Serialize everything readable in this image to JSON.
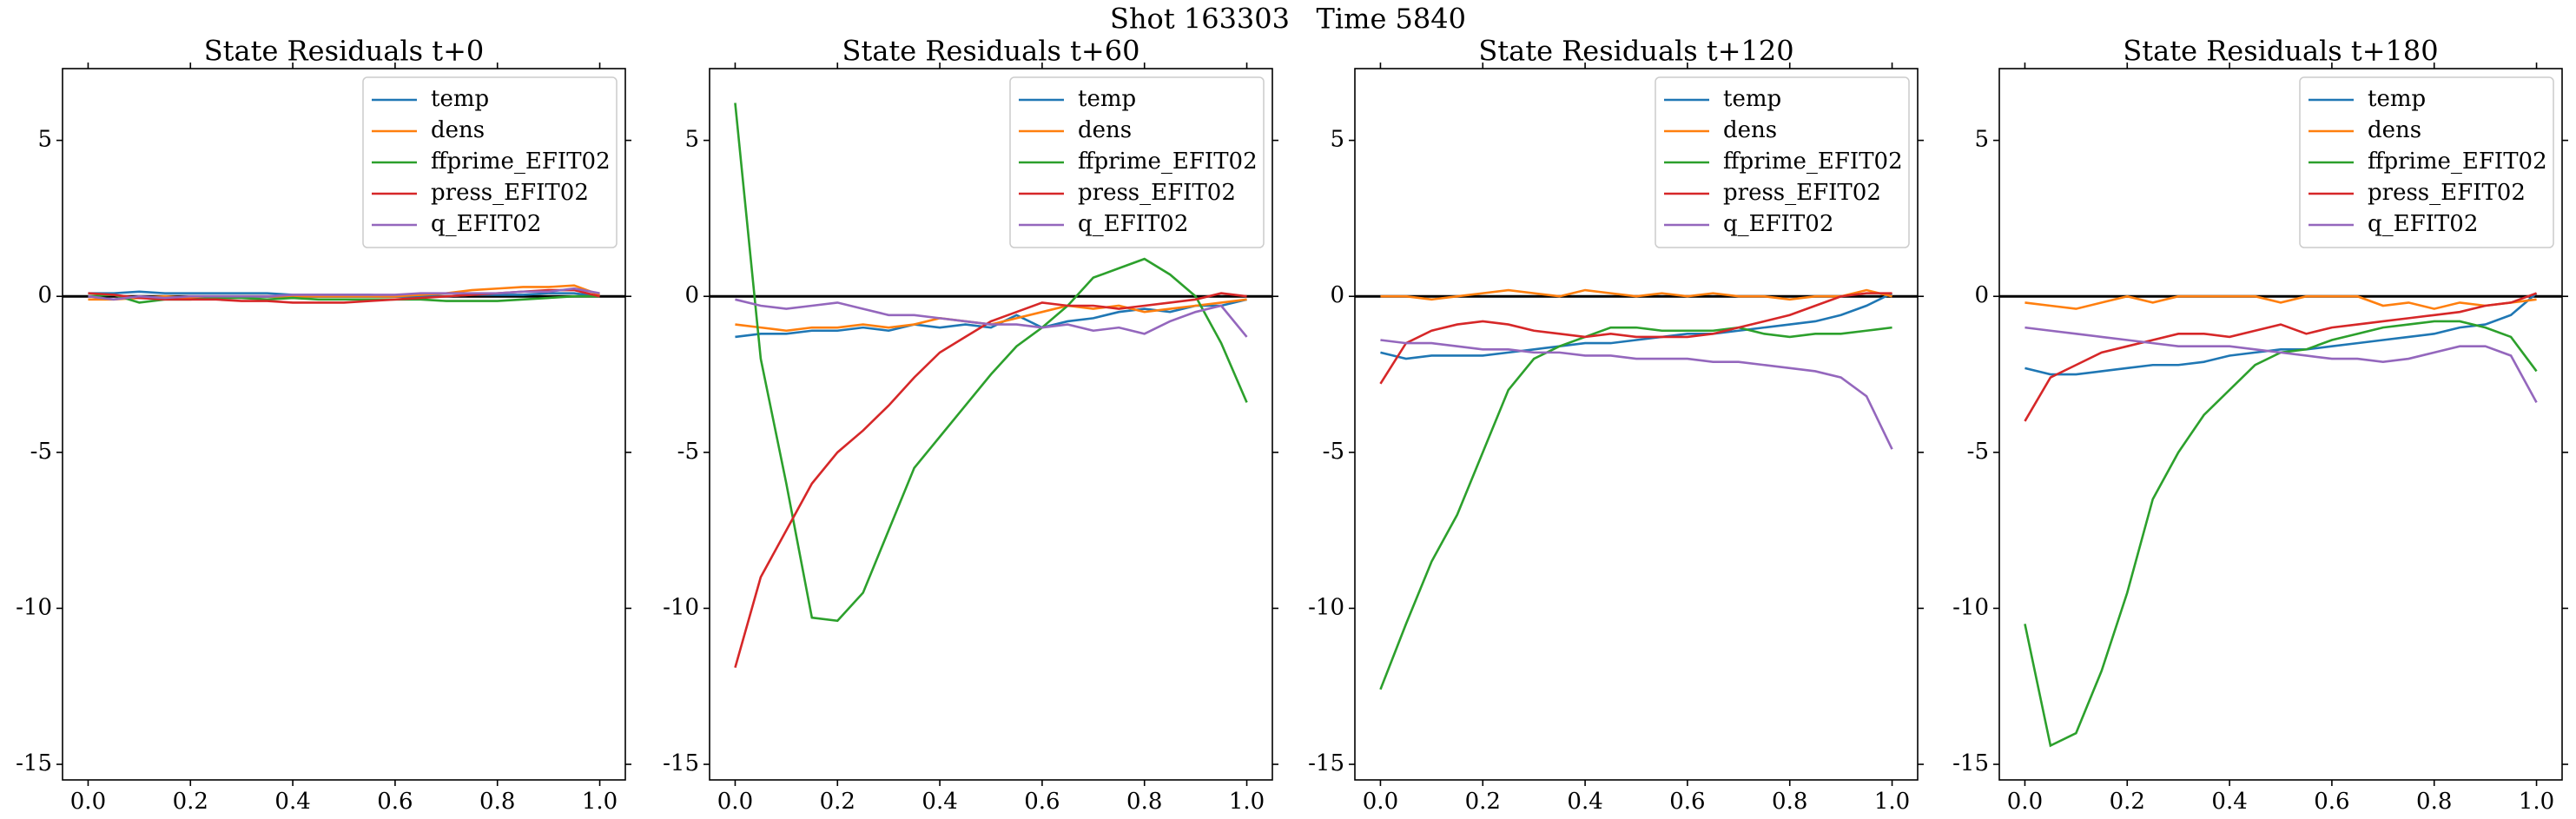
{
  "title": "Shot 163303   Time 5840",
  "chart_data": [
    {
      "type": "line",
      "title": "State Residuals t+0",
      "legend": "upper right",
      "zero_line": true,
      "x": [
        0,
        0.05,
        0.1,
        0.15,
        0.2,
        0.25,
        0.3,
        0.35,
        0.4,
        0.45,
        0.5,
        0.55,
        0.6,
        0.65,
        0.7,
        0.75,
        0.8,
        0.85,
        0.9,
        0.95,
        1
      ],
      "xlim": [
        -0.05,
        1.05
      ],
      "ylim": [
        -15.5,
        7.3
      ],
      "xticks": [
        {
          "value": 0,
          "label": "0.0"
        },
        {
          "value": 0.2,
          "label": "0.2"
        },
        {
          "value": 0.4,
          "label": "0.4"
        },
        {
          "value": 0.6,
          "label": "0.6"
        },
        {
          "value": 0.8,
          "label": "0.8"
        },
        {
          "value": 1,
          "label": "1.0"
        }
      ],
      "yticks": [
        -15,
        -10,
        -5,
        0,
        5
      ],
      "series": [
        {
          "name": "temp",
          "color": "#1f77b4",
          "values": [
            0.1,
            0.1,
            0.15,
            0.1,
            0.1,
            0.1,
            0.1,
            0.1,
            0.05,
            0.05,
            0.05,
            0.05,
            0,
            0,
            0,
            0.05,
            0.05,
            0.05,
            0.1,
            0.1,
            0
          ]
        },
        {
          "name": "dens",
          "color": "#ff7f0e",
          "values": [
            -0.1,
            -0.1,
            -0.05,
            0,
            -0.05,
            -0.05,
            0,
            0,
            0,
            0,
            0,
            0,
            0,
            0.05,
            0.1,
            0.2,
            0.25,
            0.3,
            0.3,
            0.35,
            0.05
          ]
        },
        {
          "name": "ffprime_EFIT02",
          "color": "#2ca02c",
          "values": [
            0,
            0.05,
            -0.2,
            -0.1,
            -0.1,
            -0.05,
            -0.05,
            -0.1,
            -0.05,
            -0.1,
            -0.1,
            -0.1,
            -0.1,
            -0.1,
            -0.15,
            -0.15,
            -0.15,
            -0.1,
            -0.05,
            0,
            0
          ]
        },
        {
          "name": "press_EFIT02",
          "color": "#d62728",
          "values": [
            0.1,
            0.05,
            -0.05,
            -0.1,
            -0.1,
            -0.1,
            -0.15,
            -0.15,
            -0.2,
            -0.2,
            -0.2,
            -0.15,
            -0.1,
            -0.05,
            0,
            0.05,
            0.1,
            0.15,
            0.2,
            0.2,
            0
          ]
        },
        {
          "name": "q_EFIT02",
          "color": "#9467bd",
          "values": [
            0,
            -0.1,
            0,
            -0.05,
            0,
            0,
            0,
            0,
            0.05,
            0.05,
            0.05,
            0.05,
            0.05,
            0.1,
            0.1,
            0.1,
            0.1,
            0.15,
            0.15,
            0.25,
            0.1
          ]
        }
      ]
    },
    {
      "type": "line",
      "title": "State Residuals t+60",
      "legend": "upper right",
      "zero_line": true,
      "x": [
        0,
        0.05,
        0.1,
        0.15,
        0.2,
        0.25,
        0.3,
        0.35,
        0.4,
        0.45,
        0.5,
        0.55,
        0.6,
        0.65,
        0.7,
        0.75,
        0.8,
        0.85,
        0.9,
        0.95,
        1
      ],
      "xlim": [
        -0.05,
        1.05
      ],
      "ylim": [
        -15.5,
        7.3
      ],
      "xticks": [
        {
          "value": 0,
          "label": "0.0"
        },
        {
          "value": 0.2,
          "label": "0.2"
        },
        {
          "value": 0.4,
          "label": "0.4"
        },
        {
          "value": 0.6,
          "label": "0.6"
        },
        {
          "value": 0.8,
          "label": "0.8"
        },
        {
          "value": 1,
          "label": "1.0"
        }
      ],
      "yticks": [
        -15,
        -10,
        -5,
        0,
        5
      ],
      "series": [
        {
          "name": "temp",
          "color": "#1f77b4",
          "values": [
            -1.3,
            -1.2,
            -1.2,
            -1.1,
            -1.1,
            -1.0,
            -1.1,
            -0.9,
            -1.0,
            -0.9,
            -1.0,
            -0.6,
            -1.0,
            -0.8,
            -0.7,
            -0.5,
            -0.4,
            -0.5,
            -0.3,
            -0.3,
            -0.1
          ]
        },
        {
          "name": "dens",
          "color": "#ff7f0e",
          "values": [
            -0.9,
            -1.0,
            -1.1,
            -1.0,
            -1.0,
            -0.9,
            -1.0,
            -0.9,
            -0.7,
            -0.8,
            -0.9,
            -0.7,
            -0.5,
            -0.3,
            -0.4,
            -0.3,
            -0.5,
            -0.4,
            -0.3,
            -0.2,
            -0.1
          ]
        },
        {
          "name": "ffprime_EFIT02",
          "color": "#2ca02c",
          "values": [
            6.2,
            -2,
            -6,
            -10.3,
            -10.4,
            -9.5,
            -7.5,
            -5.5,
            -4.5,
            -3.5,
            -2.5,
            -1.6,
            -1.0,
            -0.3,
            0.6,
            0.9,
            1.2,
            0.7,
            0,
            -1.5,
            -3.4
          ]
        },
        {
          "name": "press_EFIT02",
          "color": "#d62728",
          "values": [
            -11.9,
            -9,
            -7.5,
            -6,
            -5,
            -4.3,
            -3.5,
            -2.6,
            -1.8,
            -1.3,
            -0.8,
            -0.5,
            -0.2,
            -0.3,
            -0.3,
            -0.4,
            -0.3,
            -0.2,
            -0.1,
            0.1,
            0
          ]
        },
        {
          "name": "q_EFIT02",
          "color": "#9467bd",
          "values": [
            -0.1,
            -0.3,
            -0.4,
            -0.3,
            -0.2,
            -0.4,
            -0.6,
            -0.6,
            -0.7,
            -0.8,
            -0.9,
            -0.9,
            -1.0,
            -0.9,
            -1.1,
            -1.0,
            -1.2,
            -0.8,
            -0.5,
            -0.3,
            -1.3
          ]
        }
      ]
    },
    {
      "type": "line",
      "title": "State Residuals t+120",
      "legend": "upper right",
      "zero_line": true,
      "x": [
        0,
        0.05,
        0.1,
        0.15,
        0.2,
        0.25,
        0.3,
        0.35,
        0.4,
        0.45,
        0.5,
        0.55,
        0.6,
        0.65,
        0.7,
        0.75,
        0.8,
        0.85,
        0.9,
        0.95,
        1
      ],
      "xlim": [
        -0.05,
        1.05
      ],
      "ylim": [
        -15.5,
        7.3
      ],
      "xticks": [
        {
          "value": 0,
          "label": "0.0"
        },
        {
          "value": 0.2,
          "label": "0.2"
        },
        {
          "value": 0.4,
          "label": "0.4"
        },
        {
          "value": 0.6,
          "label": "0.6"
        },
        {
          "value": 0.8,
          "label": "0.8"
        },
        {
          "value": 1,
          "label": "1.0"
        }
      ],
      "yticks": [
        -15,
        -10,
        -5,
        0,
        5
      ],
      "series": [
        {
          "name": "temp",
          "color": "#1f77b4",
          "values": [
            -1.8,
            -2.0,
            -1.9,
            -1.9,
            -1.9,
            -1.8,
            -1.7,
            -1.6,
            -1.5,
            -1.5,
            -1.4,
            -1.3,
            -1.2,
            -1.2,
            -1.1,
            -1.0,
            -0.9,
            -0.8,
            -0.6,
            -0.3,
            0.1
          ]
        },
        {
          "name": "dens",
          "color": "#ff7f0e",
          "values": [
            0,
            0,
            -0.1,
            0,
            0.1,
            0.2,
            0.1,
            0,
            0.2,
            0.1,
            0,
            0.1,
            0,
            0.1,
            0,
            0,
            -0.1,
            0,
            0,
            0.2,
            0
          ]
        },
        {
          "name": "ffprime_EFIT02",
          "color": "#2ca02c",
          "values": [
            -12.6,
            -10.5,
            -8.5,
            -7,
            -5,
            -3,
            -2,
            -1.6,
            -1.3,
            -1.0,
            -1.0,
            -1.1,
            -1.1,
            -1.1,
            -1.0,
            -1.2,
            -1.3,
            -1.2,
            -1.2,
            -1.1,
            -1.0
          ]
        },
        {
          "name": "press_EFIT02",
          "color": "#d62728",
          "values": [
            -2.8,
            -1.5,
            -1.1,
            -0.9,
            -0.8,
            -0.9,
            -1.1,
            -1.2,
            -1.3,
            -1.2,
            -1.3,
            -1.3,
            -1.3,
            -1.2,
            -1.0,
            -0.8,
            -0.6,
            -0.3,
            0,
            0.1,
            0.1
          ]
        },
        {
          "name": "q_EFIT02",
          "color": "#9467bd",
          "values": [
            -1.4,
            -1.5,
            -1.5,
            -1.6,
            -1.7,
            -1.7,
            -1.8,
            -1.8,
            -1.9,
            -1.9,
            -2.0,
            -2.0,
            -2.0,
            -2.1,
            -2.1,
            -2.2,
            -2.3,
            -2.4,
            -2.6,
            -3.2,
            -4.9
          ]
        }
      ]
    },
    {
      "type": "line",
      "title": "State Residuals t+180",
      "legend": "upper right",
      "zero_line": true,
      "x": [
        0,
        0.05,
        0.1,
        0.15,
        0.2,
        0.25,
        0.3,
        0.35,
        0.4,
        0.45,
        0.5,
        0.55,
        0.6,
        0.65,
        0.7,
        0.75,
        0.8,
        0.85,
        0.9,
        0.95,
        1
      ],
      "xlim": [
        -0.05,
        1.05
      ],
      "ylim": [
        -15.5,
        7.3
      ],
      "xticks": [
        {
          "value": 0,
          "label": "0.0"
        },
        {
          "value": 0.2,
          "label": "0.2"
        },
        {
          "value": 0.4,
          "label": "0.4"
        },
        {
          "value": 0.6,
          "label": "0.6"
        },
        {
          "value": 0.8,
          "label": "0.8"
        },
        {
          "value": 1,
          "label": "1.0"
        }
      ],
      "yticks": [
        -15,
        -10,
        -5,
        0,
        5
      ],
      "series": [
        {
          "name": "temp",
          "color": "#1f77b4",
          "values": [
            -2.3,
            -2.5,
            -2.5,
            -2.4,
            -2.3,
            -2.2,
            -2.2,
            -2.1,
            -1.9,
            -1.8,
            -1.7,
            -1.7,
            -1.6,
            -1.5,
            -1.4,
            -1.3,
            -1.2,
            -1.0,
            -0.9,
            -0.6,
            0.1
          ]
        },
        {
          "name": "dens",
          "color": "#ff7f0e",
          "values": [
            -0.2,
            -0.3,
            -0.4,
            -0.2,
            0,
            -0.2,
            0,
            0,
            0,
            0,
            -0.2,
            0,
            0,
            0,
            -0.3,
            -0.2,
            -0.4,
            -0.2,
            -0.3,
            -0.2,
            -0.1
          ]
        },
        {
          "name": "ffprime_EFIT02",
          "color": "#2ca02c",
          "values": [
            -10.5,
            -14.4,
            -14,
            -12,
            -9.5,
            -6.5,
            -5,
            -3.8,
            -3,
            -2.2,
            -1.8,
            -1.7,
            -1.4,
            -1.2,
            -1.0,
            -0.9,
            -0.8,
            -0.8,
            -1.0,
            -1.3,
            -2.4
          ]
        },
        {
          "name": "press_EFIT02",
          "color": "#d62728",
          "values": [
            -4,
            -2.6,
            -2.2,
            -1.8,
            -1.6,
            -1.4,
            -1.2,
            -1.2,
            -1.3,
            -1.1,
            -0.9,
            -1.2,
            -1.0,
            -0.9,
            -0.8,
            -0.7,
            -0.6,
            -0.5,
            -0.3,
            -0.2,
            0.1
          ]
        },
        {
          "name": "q_EFIT02",
          "color": "#9467bd",
          "values": [
            -1.0,
            -1.1,
            -1.2,
            -1.3,
            -1.4,
            -1.5,
            -1.6,
            -1.6,
            -1.6,
            -1.7,
            -1.8,
            -1.9,
            -2.0,
            -2.0,
            -2.1,
            -2.0,
            -1.8,
            -1.6,
            -1.6,
            -1.9,
            -3.4
          ]
        }
      ]
    }
  ]
}
